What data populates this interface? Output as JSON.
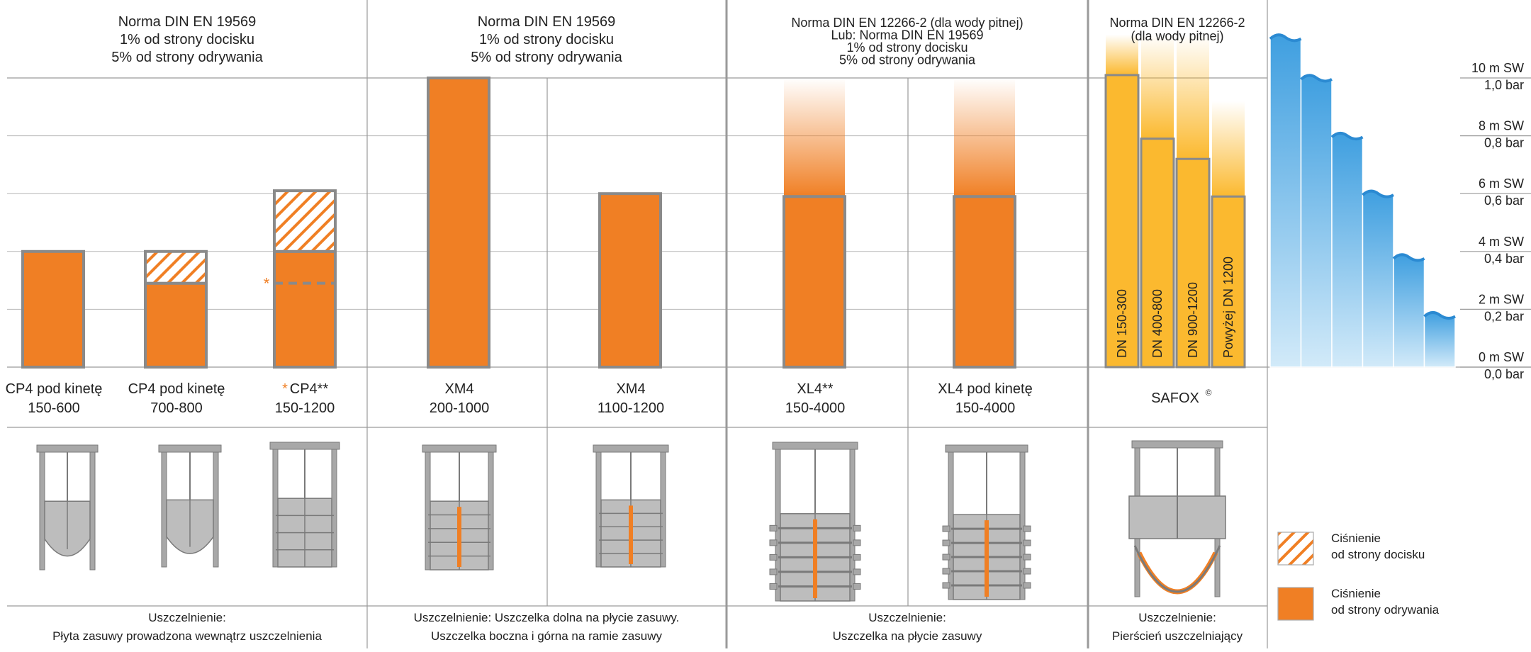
{
  "headers": [
    {
      "lines": [
        "Norma DIN EN 19569",
        "1% od strony docisku",
        "5% od strony odrywania"
      ]
    },
    {
      "lines": [
        "Norma DIN EN 19569",
        "1% od strony docisku",
        "5% od strony odrywania"
      ]
    },
    {
      "lines": [
        "Norma DIN EN 12266-2 (dla wody pitnej)",
        "Lub: Norma DIN EN 19569",
        "1% od strony docisku",
        "5% od strony odrywania"
      ]
    },
    {
      "lines": [
        "Norma DIN EN 12266-2",
        "(dla wody pitnej)"
      ]
    }
  ],
  "product_labels": [
    {
      "lines": [
        "CP4 pod kinetę",
        "150-600"
      ]
    },
    {
      "lines": [
        "CP4 pod kinetę",
        "700-800"
      ]
    },
    {
      "star": "*",
      "lines": [
        "CP4**",
        "150-1200"
      ]
    },
    {
      "lines": [
        "XM4",
        "200-1000"
      ]
    },
    {
      "lines": [
        "XM4",
        "1100-1200"
      ]
    },
    {
      "lines": [
        "XL4**",
        "150-4000"
      ]
    },
    {
      "lines": [
        "XL4 pod kinetę",
        "150-4000"
      ]
    },
    {
      "name": "SAFOX",
      "sup": "©"
    }
  ],
  "seal_texts": [
    {
      "lines": [
        "Uszczelnienie:",
        "Płyta zasuwy prowadzona wewnątrz uszczelnienia"
      ]
    },
    {
      "lines": [
        "Uszczelnienie: Uszczelka dolna na płycie zasuwy.",
        "Uszczelka boczna i górna na ramie zasuwy"
      ]
    },
    {
      "lines": [
        "Uszczelnienie:",
        "Uszczelka na płycie zasuwy"
      ]
    },
    {
      "lines": [
        "Uszczelnienie:",
        "Pierścień uszczelniający"
      ]
    }
  ],
  "axis_labels": [
    {
      "sw": "10 m SW",
      "bar": "1,0 bar"
    },
    {
      "sw": "8 m SW",
      "bar": "0,8 bar"
    },
    {
      "sw": "6 m SW",
      "bar": "0,6 bar"
    },
    {
      "sw": "4 m SW",
      "bar": "0,4 bar"
    },
    {
      "sw": "2 m SW",
      "bar": "0,2 bar"
    },
    {
      "sw": "0 m SW",
      "bar": "0,0 bar"
    }
  ],
  "legend": [
    {
      "pattern": "hatch",
      "lines": [
        "Ciśnienie",
        "od strony docisku"
      ]
    },
    {
      "pattern": "solid",
      "lines": [
        "Ciśnienie",
        "od strony odrywania"
      ]
    }
  ],
  "colors": {
    "orange": "#F07F24",
    "amber": "#FBB92F",
    "border": "#8A8A8A",
    "water": "#5FB2E6",
    "grid": "#9A9A9A"
  },
  "chart_data": {
    "type": "bar",
    "ylabel": "",
    "ylim": [
      0,
      10
    ],
    "y_ticks_m": [
      10,
      8,
      6,
      4,
      2,
      0
    ],
    "y_ticks_bar": [
      1.0,
      0.8,
      0.6,
      0.4,
      0.2,
      0.0
    ],
    "categories": [
      "CP4 pod kinetę 150-600",
      "CP4 pod kinetę 700-800",
      "CP4** 150-1200",
      "XM4 200-1000",
      "XM4 1100-1200",
      "XL4** 150-4000",
      "XL4 pod kinetę 150-4000"
    ],
    "series": [
      {
        "name": "Ciśnienie od strony odrywania",
        "values": [
          4,
          2.9,
          4,
          10,
          6,
          5.9,
          5.9
        ]
      },
      {
        "name": "Ciśnienie od strony docisku",
        "values": [
          0,
          1.1,
          2.1,
          0,
          0,
          0,
          0
        ]
      }
    ],
    "gradient_extension_to": [
      null,
      null,
      null,
      null,
      null,
      10,
      10
    ],
    "dashed_marker_value": 2.9,
    "safox": {
      "categories": [
        "DN 150-300",
        "DN 400-800",
        "DN 900-1200",
        "Powyżej DN 1200"
      ],
      "values": [
        10.1,
        7.9,
        7.2,
        5.9
      ],
      "extension_to": [
        11.5,
        11.5,
        11.5,
        9.2
      ]
    },
    "water_steps_m": [
      11.5,
      10.1,
      8.1,
      6.1,
      3.9,
      1.9
    ]
  }
}
